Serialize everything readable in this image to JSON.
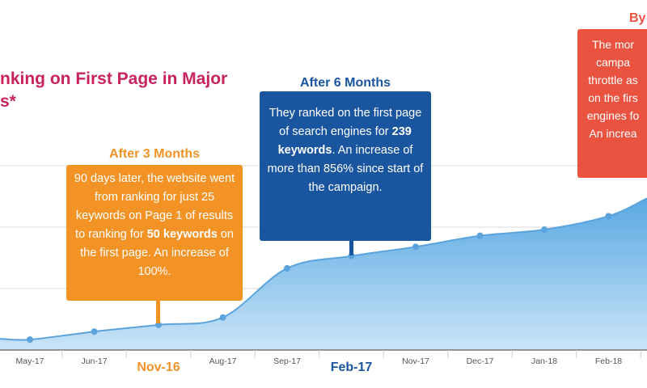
{
  "title_lines": [
    "nking on First Page in Major",
    "s*"
  ],
  "colors": {
    "orange": "#f39325",
    "blue": "#1a56a0",
    "red": "#ea5340",
    "title": "#c8235f",
    "area": "#7fbde9",
    "line": "#5aa3dc"
  },
  "callouts": [
    {
      "header": "After 3 Months",
      "pre": "90 days later, the website went from ranking for just 25 keywords on Page 1 of results to ranking for ",
      "bold": "50 keywords",
      "post": " on the first page. An increase of 100%."
    },
    {
      "header": "After 6 Months",
      "pre": "They ranked on the first page of search engines for ",
      "bold": "239 keywords",
      "post": ". An increase of more than 856% since start of the campaign."
    },
    {
      "header": "By",
      "pre": "The mor campa throttle as on the firs engines fo An increa",
      "bold": "",
      "post": ""
    }
  ],
  "chart_data": {
    "type": "area",
    "categories": [
      "May-17",
      "Jun-17",
      "Nov-16",
      "Aug-17",
      "Sep-17",
      "Feb-17",
      "Nov-17",
      "Dec-17",
      "Jan-18",
      "Feb-18"
    ],
    "highlighted_categories": {
      "Nov-16": "orange",
      "Feb-17": "blue"
    },
    "values": [
      17,
      30,
      41,
      53,
      133,
      153,
      168,
      186,
      196,
      218
    ],
    "trailing_value": 247,
    "ylim": [
      0,
      300
    ],
    "grid": true,
    "xlabel": "",
    "ylabel": ""
  }
}
